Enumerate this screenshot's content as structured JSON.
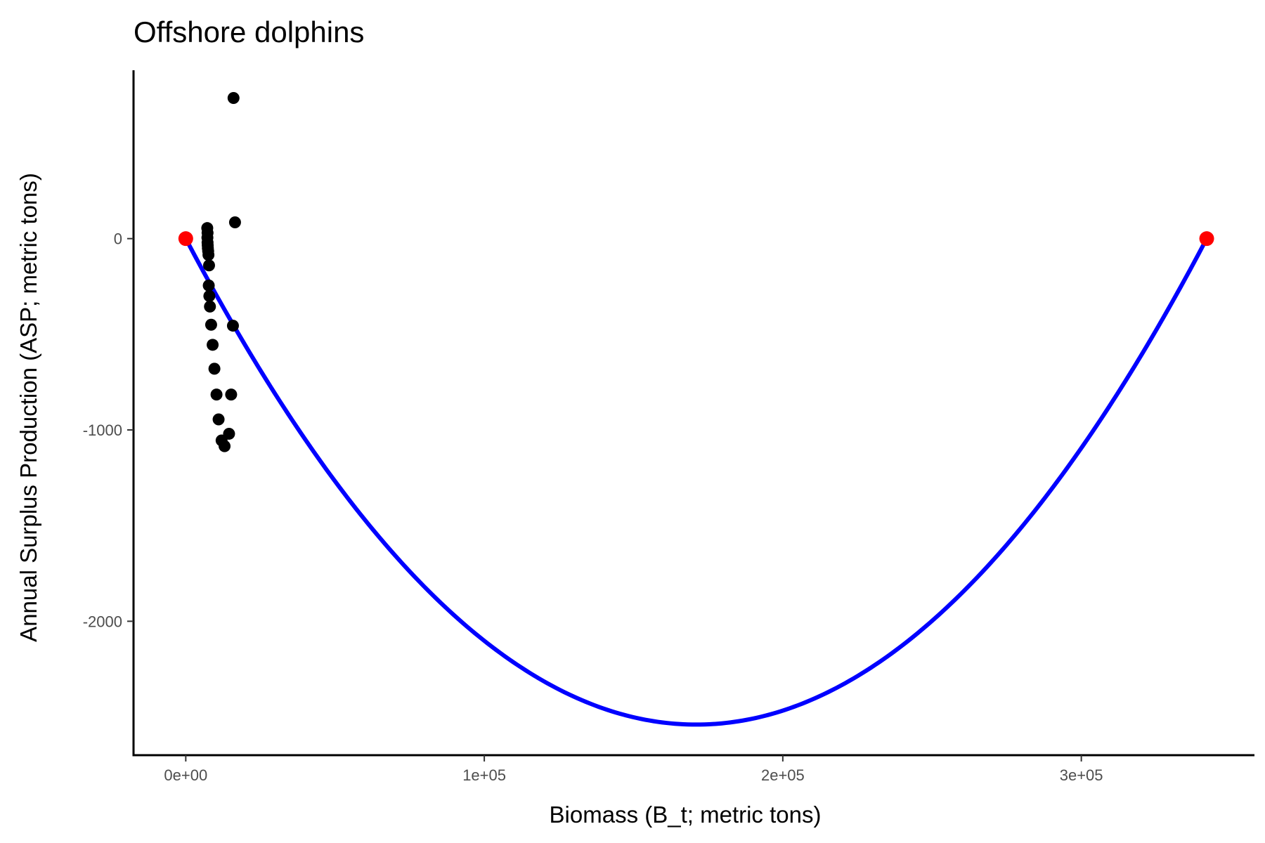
{
  "chart_data": {
    "type": "scatter",
    "title": "Offshore dolphins",
    "xlabel": "Biomass (B_t; metric tons)",
    "ylabel": "Annual Surplus Production (ASP; metric tons)",
    "xlim": [
      -17500,
      358000
    ],
    "ylim": [
      -2700,
      880
    ],
    "x_ticks": [
      0,
      100000,
      200000,
      300000
    ],
    "x_tick_labels": [
      "0e+00",
      "1e+05",
      "2e+05",
      "3e+05"
    ],
    "y_ticks": [
      -2000,
      -1000,
      0
    ],
    "y_tick_labels": [
      "-2000",
      "-1000",
      "0"
    ],
    "grid": false,
    "legend": "none",
    "colors": {
      "points": "#000000",
      "curve": "#0000ff",
      "endpoints": "#ff0000",
      "axis": "#000000"
    },
    "points": [
      {
        "x": 16000,
        "y": 735
      },
      {
        "x": 16500,
        "y": 85
      },
      {
        "x": 7200,
        "y": 55
      },
      {
        "x": 7300,
        "y": 30
      },
      {
        "x": 7250,
        "y": 5
      },
      {
        "x": 7300,
        "y": -20
      },
      {
        "x": 7350,
        "y": -35
      },
      {
        "x": 7400,
        "y": -50
      },
      {
        "x": 7500,
        "y": -65
      },
      {
        "x": 7600,
        "y": -85
      },
      {
        "x": 7800,
        "y": -140
      },
      {
        "x": 7700,
        "y": -245
      },
      {
        "x": 7900,
        "y": -300
      },
      {
        "x": 8100,
        "y": -355
      },
      {
        "x": 8500,
        "y": -450
      },
      {
        "x": 15800,
        "y": -455
      },
      {
        "x": 9000,
        "y": -555
      },
      {
        "x": 9600,
        "y": -680
      },
      {
        "x": 10300,
        "y": -815
      },
      {
        "x": 15200,
        "y": -815
      },
      {
        "x": 11000,
        "y": -945
      },
      {
        "x": 14500,
        "y": -1020
      },
      {
        "x": 12000,
        "y": -1055
      },
      {
        "x": 13000,
        "y": -1085
      }
    ],
    "curve": {
      "name": "",
      "x_min": 0,
      "x_max": 342000,
      "vertex_x": 171000,
      "vertex_y": -2540
    },
    "endpoints": [
      {
        "x": 0,
        "y": 0
      },
      {
        "x": 342000,
        "y": 0
      }
    ]
  }
}
